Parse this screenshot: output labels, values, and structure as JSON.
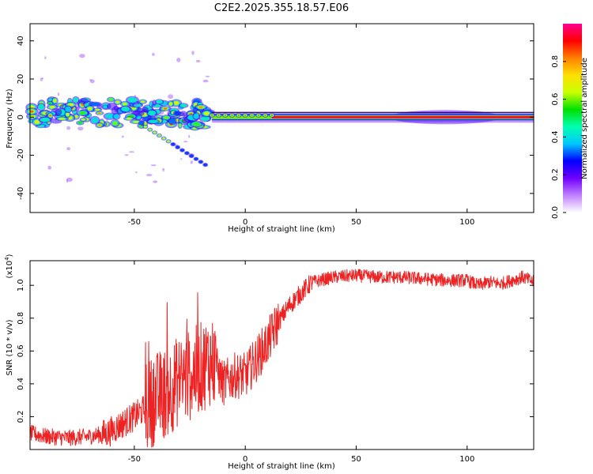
{
  "title": "C2E2.2025.355.18.57.E06",
  "chart_data": [
    {
      "type": "heatmap",
      "title": "C2E2.2025.355.18.57.E06",
      "xlabel": "Height of straight line (km)",
      "ylabel": "Frequency (Hz)",
      "xlim": [
        -97,
        130
      ],
      "ylim": [
        -50,
        49
      ],
      "xticks": [
        -50,
        0,
        50,
        100
      ],
      "yticks": [
        -40,
        -20,
        0,
        20,
        40
      ],
      "xtick_labels": [
        "-50",
        "0",
        "50",
        "100"
      ],
      "ytick_labels": [
        "-40",
        "-20",
        "0",
        "20",
        "40"
      ],
      "grid": false,
      "features": [
        {
          "name": "scattered-blobs",
          "x_range": [
            -97,
            -15
          ],
          "freq_center": 3,
          "freq_spread": 6
        },
        {
          "name": "chirp-trail",
          "x_range": [
            -45,
            -18
          ],
          "freq_from": -5,
          "freq_to": -25
        },
        {
          "name": "carrier-line",
          "x_range": [
            -15,
            130
          ],
          "freq": 0,
          "amplitude": 1.0
        }
      ],
      "colorbar": {
        "label": "Normalized spectral amplitude",
        "range": [
          0,
          1
        ],
        "ticks": [
          0.0,
          0.2,
          0.4,
          0.6,
          0.8
        ],
        "tick_labels": [
          "0.0",
          "0.2",
          "0.4",
          "0.6",
          "0.8"
        ],
        "colors": [
          "#ffffff",
          "#c080ff",
          "#7000ff",
          "#0000ff",
          "#00c8ff",
          "#00ffb0",
          "#00e000",
          "#c8ff00",
          "#ffe000",
          "#ff8000",
          "#ff0000",
          "#ff0090"
        ]
      }
    },
    {
      "type": "line",
      "title": "",
      "xlabel": "Height of straight line (km)",
      "ylabel": "SNR (10 * v/v)",
      "y_multiplier": "(x10",
      "y_multiplier_exp": "4",
      "y_multiplier_close": ")",
      "xlim": [
        -97,
        130
      ],
      "ylim": [
        0.0,
        1.15
      ],
      "xticks": [
        -50,
        0,
        50,
        100
      ],
      "yticks": [
        0.2,
        0.4,
        0.6,
        0.8,
        1.0
      ],
      "xtick_labels": [
        "-50",
        "0",
        "50",
        "100"
      ],
      "ytick_labels": [
        "0.2",
        "0.4",
        "0.6",
        "0.8",
        "1.0"
      ],
      "grid": false,
      "color": "#ee2222",
      "series": [
        {
          "name": "SNR",
          "x": [
            -97,
            -90,
            -80,
            -70,
            -62,
            -55,
            -50,
            -45,
            -40,
            -35,
            -30,
            -25,
            -20,
            -15,
            -10,
            -5,
            0,
            5,
            10,
            15,
            20,
            25,
            30,
            40,
            50,
            60,
            70,
            80,
            90,
            100,
            105,
            110,
            115,
            120,
            125,
            130
          ],
          "y": [
            0.1,
            0.08,
            0.07,
            0.08,
            0.1,
            0.16,
            0.2,
            0.25,
            0.32,
            0.35,
            0.42,
            0.45,
            0.5,
            0.55,
            0.4,
            0.45,
            0.45,
            0.55,
            0.65,
            0.78,
            0.88,
            0.95,
            1.02,
            1.05,
            1.06,
            1.05,
            1.05,
            1.04,
            1.03,
            1.03,
            1.0,
            1.02,
            1.01,
            1.03,
            1.05,
            1.02
          ]
        }
      ],
      "noise_amplitude": [
        {
          "x": [
            -97,
            -65
          ],
          "amp": 0.05
        },
        {
          "x": [
            -65,
            -45
          ],
          "amp": 0.09
        },
        {
          "x": [
            -45,
            -13
          ],
          "amp": 0.28
        },
        {
          "x": [
            -13,
            15
          ],
          "amp": 0.14
        },
        {
          "x": [
            15,
            30
          ],
          "amp": 0.06
        },
        {
          "x": [
            30,
            130
          ],
          "amp": 0.04
        }
      ]
    }
  ]
}
